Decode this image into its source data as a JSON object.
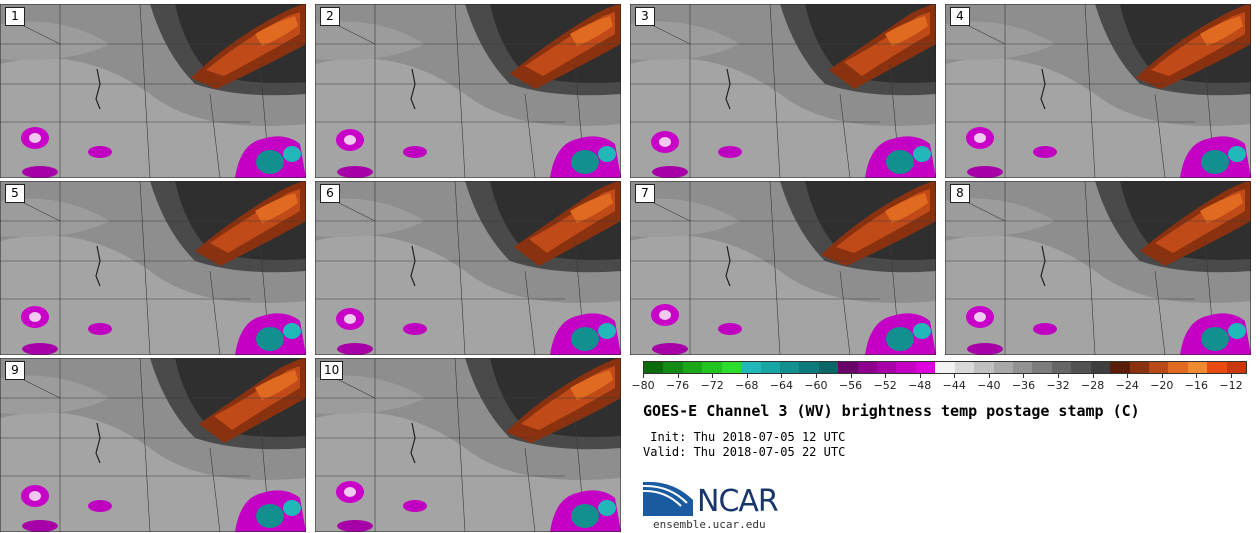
{
  "panels": [
    {
      "num": "1"
    },
    {
      "num": "2"
    },
    {
      "num": "3"
    },
    {
      "num": "4"
    },
    {
      "num": "5"
    },
    {
      "num": "6"
    },
    {
      "num": "7"
    },
    {
      "num": "8"
    },
    {
      "num": "9"
    },
    {
      "num": "10"
    }
  ],
  "colorbar": {
    "colors": [
      "#0b6b0b",
      "#138a13",
      "#1aa81a",
      "#22c422",
      "#2ddd2d",
      "#20b8b8",
      "#18a5a5",
      "#128f8f",
      "#0c7a7a",
      "#086666",
      "#6a006a",
      "#8c008c",
      "#a800a8",
      "#c400c4",
      "#dd00dd",
      "#f2f2f2",
      "#d8d8d8",
      "#c0c0c0",
      "#a8a8a8",
      "#929292",
      "#7c7c7c",
      "#666666",
      "#525252",
      "#3e3e3e",
      "#5a1e08",
      "#8a3210",
      "#b84a18",
      "#e06a20",
      "#f08a30",
      "#e84a10",
      "#c83808"
    ],
    "tick_labels": [
      "−80",
      "−76",
      "−72",
      "−68",
      "−64",
      "−60",
      "−56",
      "−52",
      "−48",
      "−44",
      "−40",
      "−36",
      "−32",
      "−28",
      "−24",
      "−20",
      "−16",
      "−12"
    ]
  },
  "title": "GOES-E Channel 3 (WV) brightness temp postage stamp (C)",
  "init_text": " Init: Thu 2018-07-05 12 UTC",
  "valid_text": "Valid: Thu 2018-07-05 22 UTC",
  "logo": {
    "text": "NCAR",
    "url": "ensemble.ucar.edu"
  }
}
